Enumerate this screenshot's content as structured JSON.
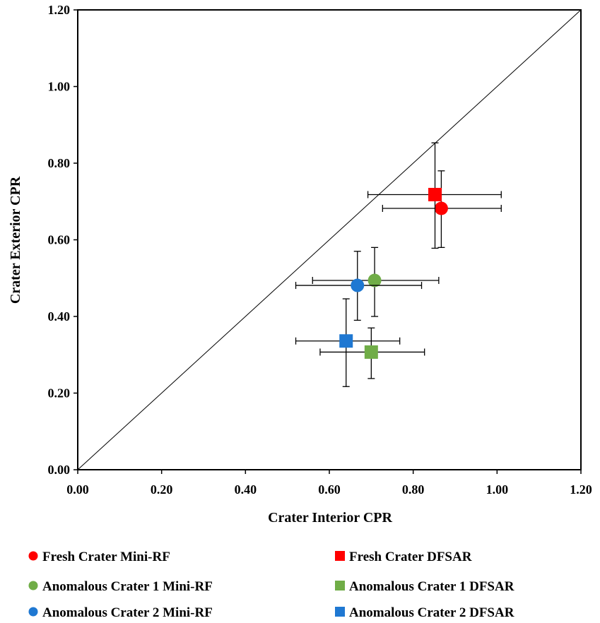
{
  "chart_data": {
    "type": "scatter",
    "xlabel": "Crater Interior CPR",
    "ylabel": "Crater Exterior CPR",
    "xlim": [
      0,
      1.2
    ],
    "ylim": [
      0,
      1.2
    ],
    "x_ticks": [
      "0.00",
      "0.20",
      "0.40",
      "0.60",
      "0.80",
      "1.00",
      "1.20"
    ],
    "y_ticks": [
      "0.00",
      "0.20",
      "0.40",
      "0.60",
      "0.80",
      "1.00",
      "1.20"
    ],
    "grid": false,
    "reference_line": "1:1",
    "legend_position": "bottom",
    "series": [
      {
        "name": "Fresh Crater Mini-RF",
        "marker": "circle",
        "color": "#ff0000",
        "x": 0.867,
        "y": 0.682,
        "x_err": [
          0.727,
          1.01
        ],
        "y_err": [
          0.58,
          0.78
        ]
      },
      {
        "name": "Fresh Crater DFSAR",
        "marker": "square",
        "color": "#ff0000",
        "x": 0.852,
        "y": 0.718,
        "x_err": [
          0.692,
          1.01
        ],
        "y_err": [
          0.578,
          0.853
        ]
      },
      {
        "name": "Anomalous Crater 1 Mini-RF",
        "marker": "circle",
        "color": "#70ad47",
        "x": 0.708,
        "y": 0.494,
        "x_err": [
          0.56,
          0.861
        ],
        "y_err": [
          0.4,
          0.58
        ]
      },
      {
        "name": "Anomalous Crater 1 DFSAR",
        "marker": "square",
        "color": "#70ad47",
        "x": 0.7,
        "y": 0.307,
        "x_err": [
          0.578,
          0.827
        ],
        "y_err": [
          0.238,
          0.37
        ]
      },
      {
        "name": "Anomalous Crater 2 Mini-RF",
        "marker": "circle",
        "color": "#1f78d2",
        "x": 0.667,
        "y": 0.481,
        "x_err": [
          0.52,
          0.82
        ],
        "y_err": [
          0.39,
          0.57
        ]
      },
      {
        "name": "Anomalous Crater 2 DFSAR",
        "marker": "square",
        "color": "#1f78d2",
        "x": 0.64,
        "y": 0.336,
        "x_err": [
          0.52,
          0.768
        ],
        "y_err": [
          0.217,
          0.446
        ]
      }
    ]
  }
}
